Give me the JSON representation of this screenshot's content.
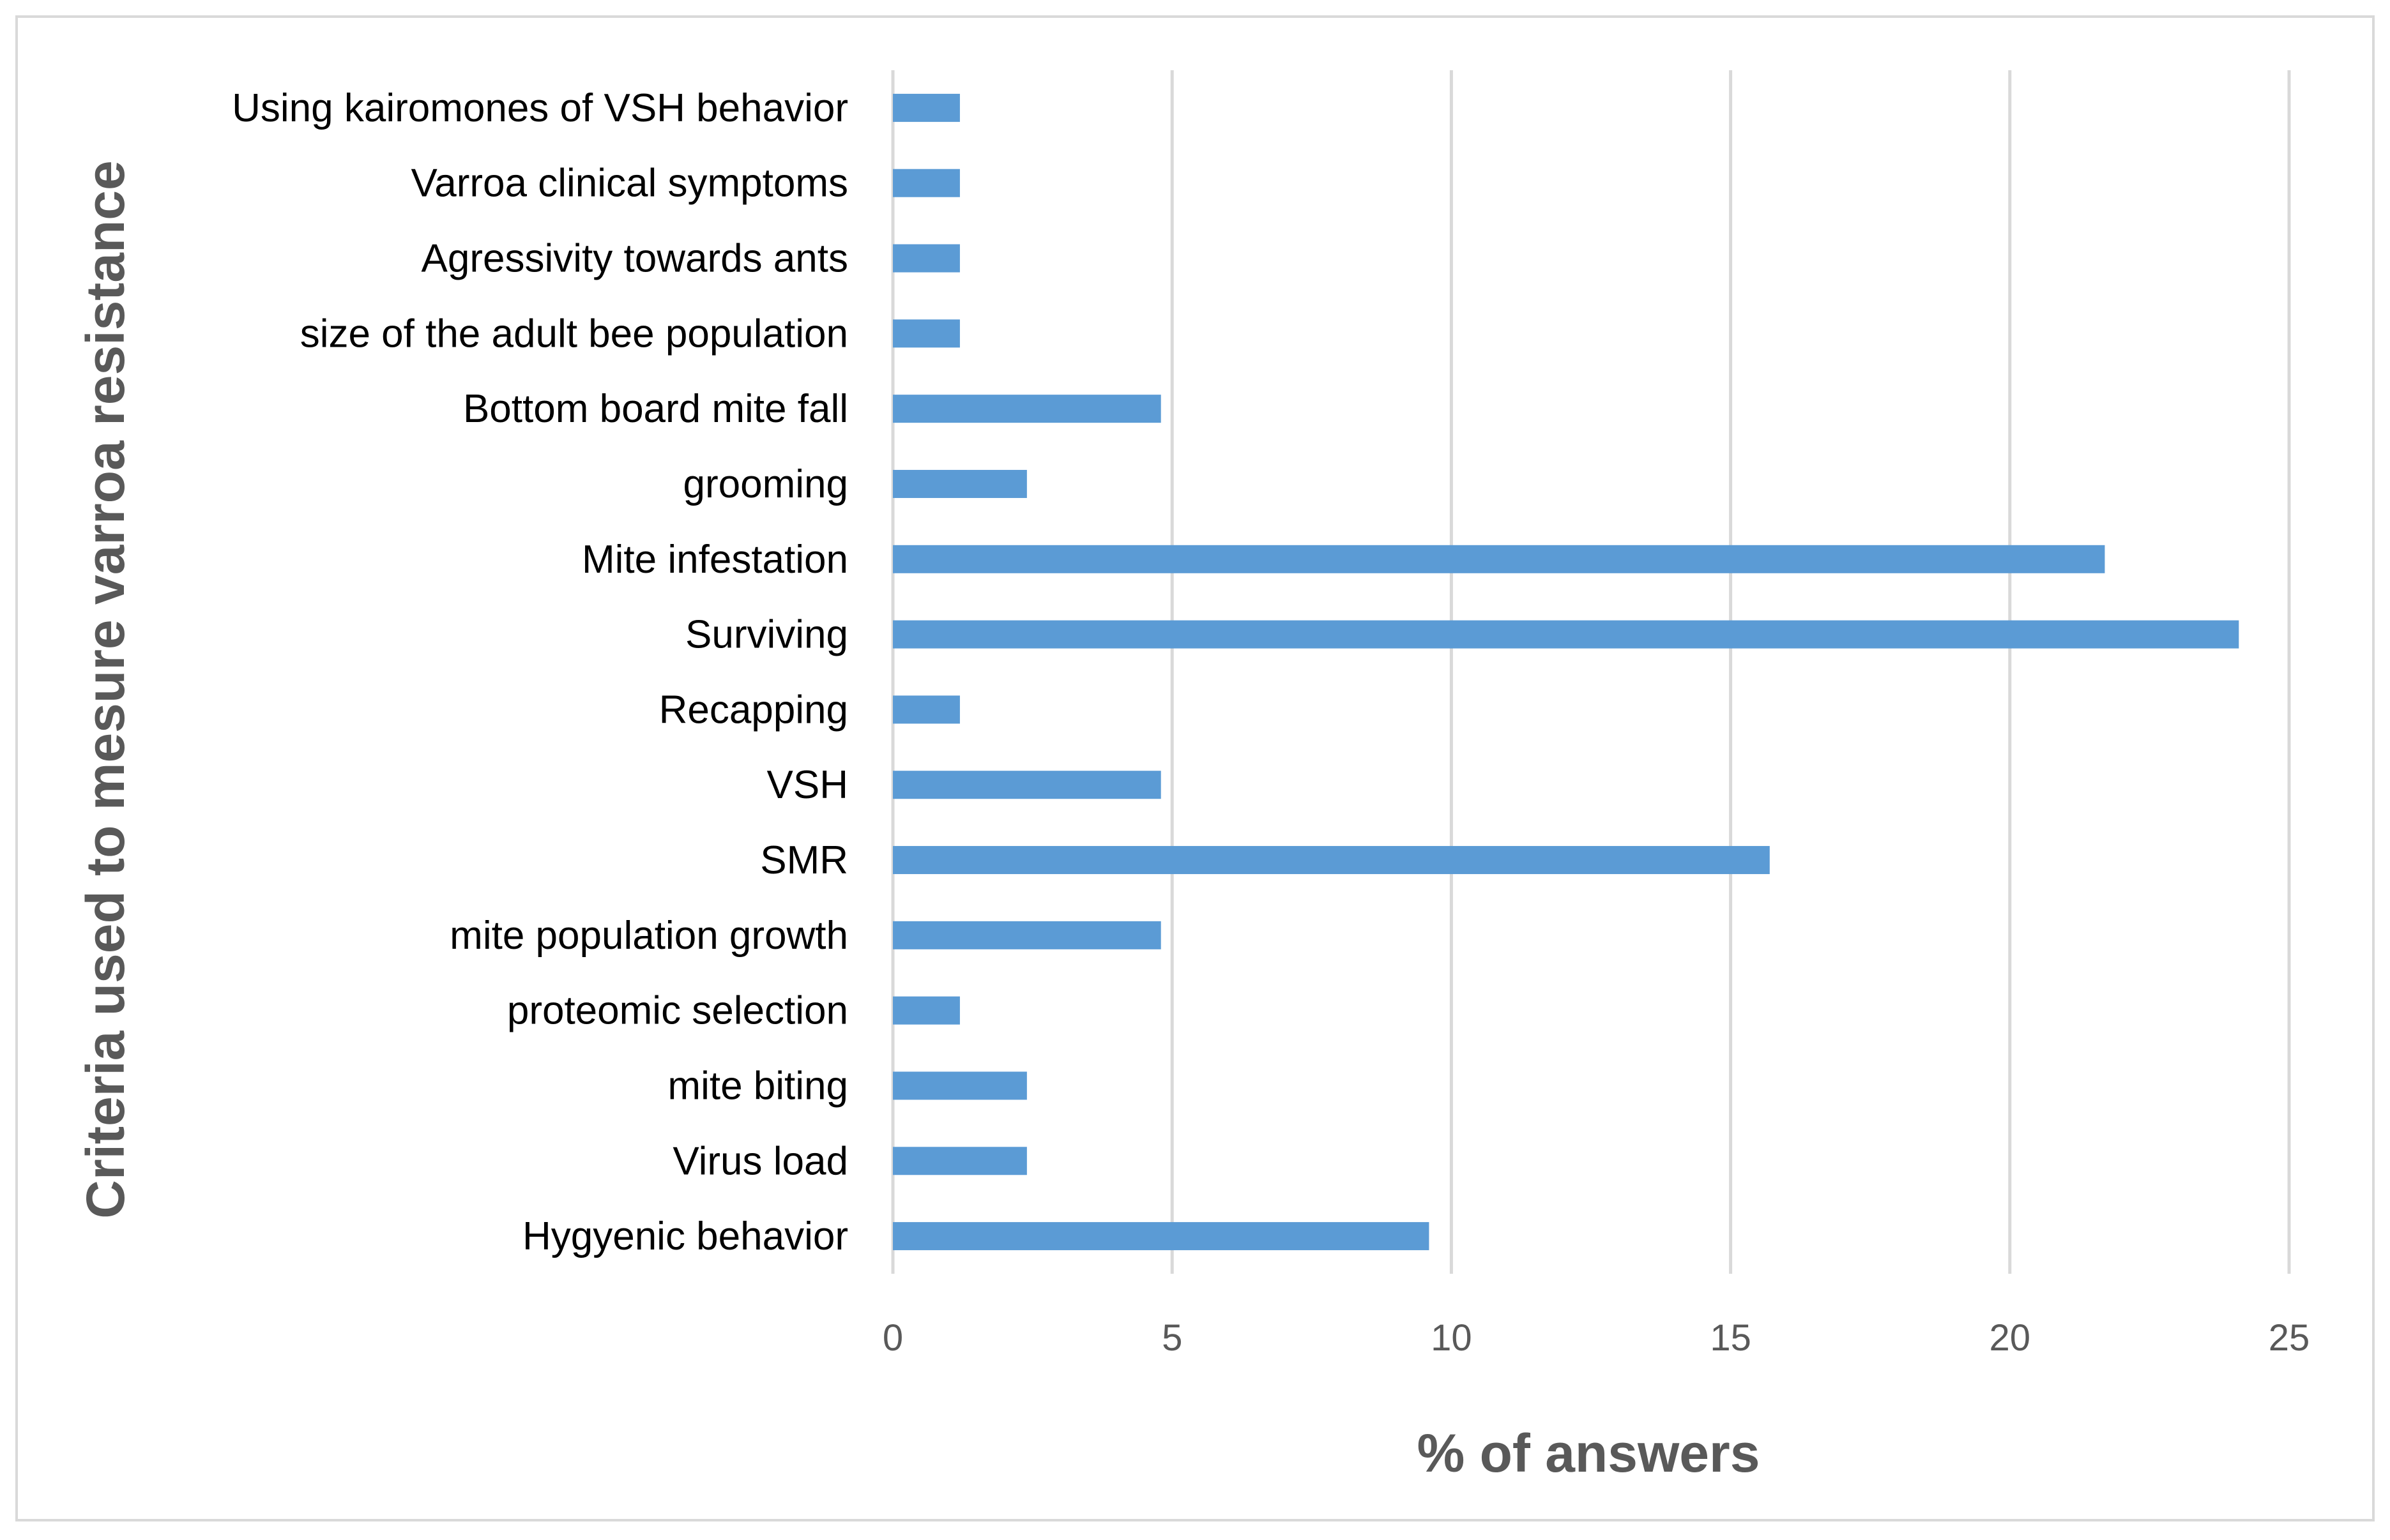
{
  "chart_data": {
    "type": "bar",
    "orientation": "horizontal",
    "title": "",
    "xlabel": "% of answers",
    "ylabel": "Criteria used to mesure varroa resistance",
    "xlim": [
      0,
      25
    ],
    "xticks": [
      0,
      5,
      10,
      15,
      20,
      25
    ],
    "grid": true,
    "legend": "none",
    "categories": [
      "Using kairomones of VSH behavior",
      "Varroa clinical symptoms",
      "Agressivity towards ants",
      "size of the adult bee population",
      "Bottom board mite fall",
      "grooming",
      "Mite infestation",
      "Surviving",
      "Recapping",
      "VSH",
      "SMR",
      "mite population growth",
      "proteomic selection",
      "mite biting",
      "Virus load",
      "Hygyenic behavior"
    ],
    "values": [
      1.2,
      1.2,
      1.2,
      1.2,
      4.8,
      2.4,
      21.7,
      24.1,
      1.2,
      4.8,
      15.7,
      4.8,
      1.2,
      2.4,
      2.4,
      9.6
    ],
    "bar_color": "#5b9bd5",
    "grid_color": "#d9d9d9",
    "frame_color": "#d9d9d9"
  }
}
